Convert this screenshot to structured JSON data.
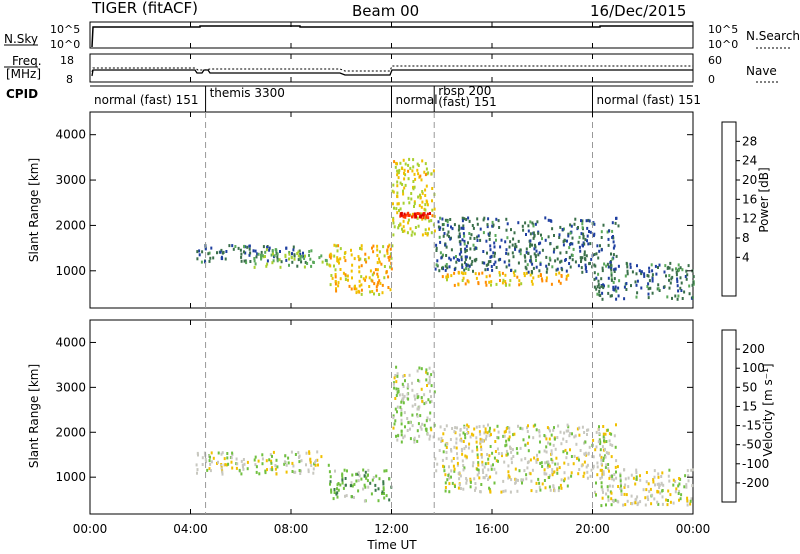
{
  "header": {
    "radar": "TIGER (fitACF)",
    "beam": "Beam 00",
    "date": "16/Dec/2015"
  },
  "sky_panel": {
    "left_label": "N.Sky",
    "y_ticks": [
      "10^5",
      "10^0"
    ],
    "right_ticks": [
      "10^5",
      "10^0"
    ],
    "right_label": "N.Search"
  },
  "freq_panel": {
    "left_label_line1": "Freq.",
    "left_label_line2": "[MHz]",
    "y_ticks": [
      "18",
      "8"
    ],
    "right_ticks": [
      "60",
      "0"
    ],
    "right_label": "Nave"
  },
  "cpid": {
    "label": "CPID",
    "segments": [
      {
        "text": "normal (fast) 151",
        "start": 0.0,
        "end": 4.6
      },
      {
        "text": "themis 3300",
        "start": 4.6,
        "end": 12.0
      },
      {
        "text": "normal",
        "start": 12.0,
        "end": 13.7
      },
      {
        "text": "rbsp 200",
        "text2": "(fast)  151",
        "start": 13.7,
        "end": 20.0
      },
      {
        "text": "normal (fast) 151",
        "start": 20.0,
        "end": 24.0
      }
    ]
  },
  "x_axis": {
    "title": "Time UT",
    "ticks": [
      "00:00",
      "04:00",
      "08:00",
      "12:00",
      "16:00",
      "20:00",
      "00:00"
    ]
  },
  "power_panel": {
    "ylabel": "Slant Range [km]",
    "y_ticks": [
      "4000",
      "3000",
      "2000",
      "1000"
    ],
    "colorbar_label": "Power [dB]",
    "colorbar_ticks": [
      "28",
      "24",
      "20",
      "16",
      "12",
      "8",
      "4"
    ],
    "colors": [
      "#0000ff",
      "#1f3fa0",
      "#3a6f4a",
      "#5aa85a",
      "#a8d030",
      "#f0c000",
      "#ff8c00",
      "#ff3000",
      "#dd0000"
    ]
  },
  "velocity_panel": {
    "ylabel": "Slant Range [km]",
    "y_ticks": [
      "4000",
      "3000",
      "2000",
      "1000"
    ],
    "colorbar_label": "Velocity [m s⁻¹]",
    "colorbar_ticks": [
      "200",
      "100",
      "50",
      "15",
      "-15",
      "-50",
      "-100",
      "-200"
    ],
    "colors": [
      "#1010d0",
      "#2a4aa0",
      "#3a7a4a",
      "#70c040",
      "#c8c8c0",
      "#f0c000",
      "#ff9000",
      "#ff4000",
      "#e00000"
    ]
  },
  "chart_data": [
    {
      "type": "heatmap",
      "title": "Beam 00",
      "xlabel": "Time UT",
      "ylabel": "Slant Range [km]",
      "xlim": [
        0,
        24
      ],
      "ylim": [
        180,
        4500
      ],
      "colorbar": {
        "label": "Power [dB]",
        "range": [
          0,
          32
        ]
      },
      "echo_regions": [
        {
          "t": [
            4.2,
            8.5
          ],
          "range_km": [
            1200,
            1600
          ],
          "value": 8
        },
        {
          "t": [
            6.5,
            9.5
          ],
          "range_km": [
            1100,
            1500
          ],
          "value": 14
        },
        {
          "t": [
            9.5,
            12.0
          ],
          "range_km": [
            500,
            1600
          ],
          "value": 20
        },
        {
          "t": [
            12.0,
            13.7
          ],
          "range_km": [
            1800,
            3500
          ],
          "value": 18
        },
        {
          "t": [
            12.3,
            13.5
          ],
          "range_km": [
            2200,
            2300
          ],
          "value": 28
        },
        {
          "t": [
            14.0,
            19.0
          ],
          "range_km": [
            700,
            1000
          ],
          "value": 20
        },
        {
          "t": [
            13.7,
            21.0
          ],
          "range_km": [
            1000,
            2200
          ],
          "value": 8
        },
        {
          "t": [
            20.0,
            24.0
          ],
          "range_km": [
            400,
            1200
          ],
          "value": 8
        }
      ]
    },
    {
      "type": "heatmap",
      "title": "Beam 00",
      "xlabel": "Time UT",
      "ylabel": "Slant Range [km]",
      "xlim": [
        0,
        24
      ],
      "ylim": [
        180,
        4500
      ],
      "colorbar": {
        "label": "Velocity [m s⁻¹]",
        "range": [
          -250,
          250
        ]
      },
      "echo_regions": [
        {
          "t": [
            4.2,
            9.5
          ],
          "range_km": [
            1100,
            1600
          ],
          "value": 0
        },
        {
          "t": [
            9.5,
            12.0
          ],
          "range_km": [
            500,
            1200
          ],
          "value": -60
        },
        {
          "t": [
            12.0,
            13.7
          ],
          "range_km": [
            1800,
            3500
          ],
          "value": -20
        },
        {
          "t": [
            14.0,
            19.0
          ],
          "range_km": [
            700,
            1000
          ],
          "value": 0
        },
        {
          "t": [
            13.7,
            21.0
          ],
          "range_km": [
            1000,
            2200
          ],
          "value": 5
        },
        {
          "t": [
            20.0,
            24.0
          ],
          "range_km": [
            400,
            1200
          ],
          "value": 0
        }
      ]
    }
  ]
}
